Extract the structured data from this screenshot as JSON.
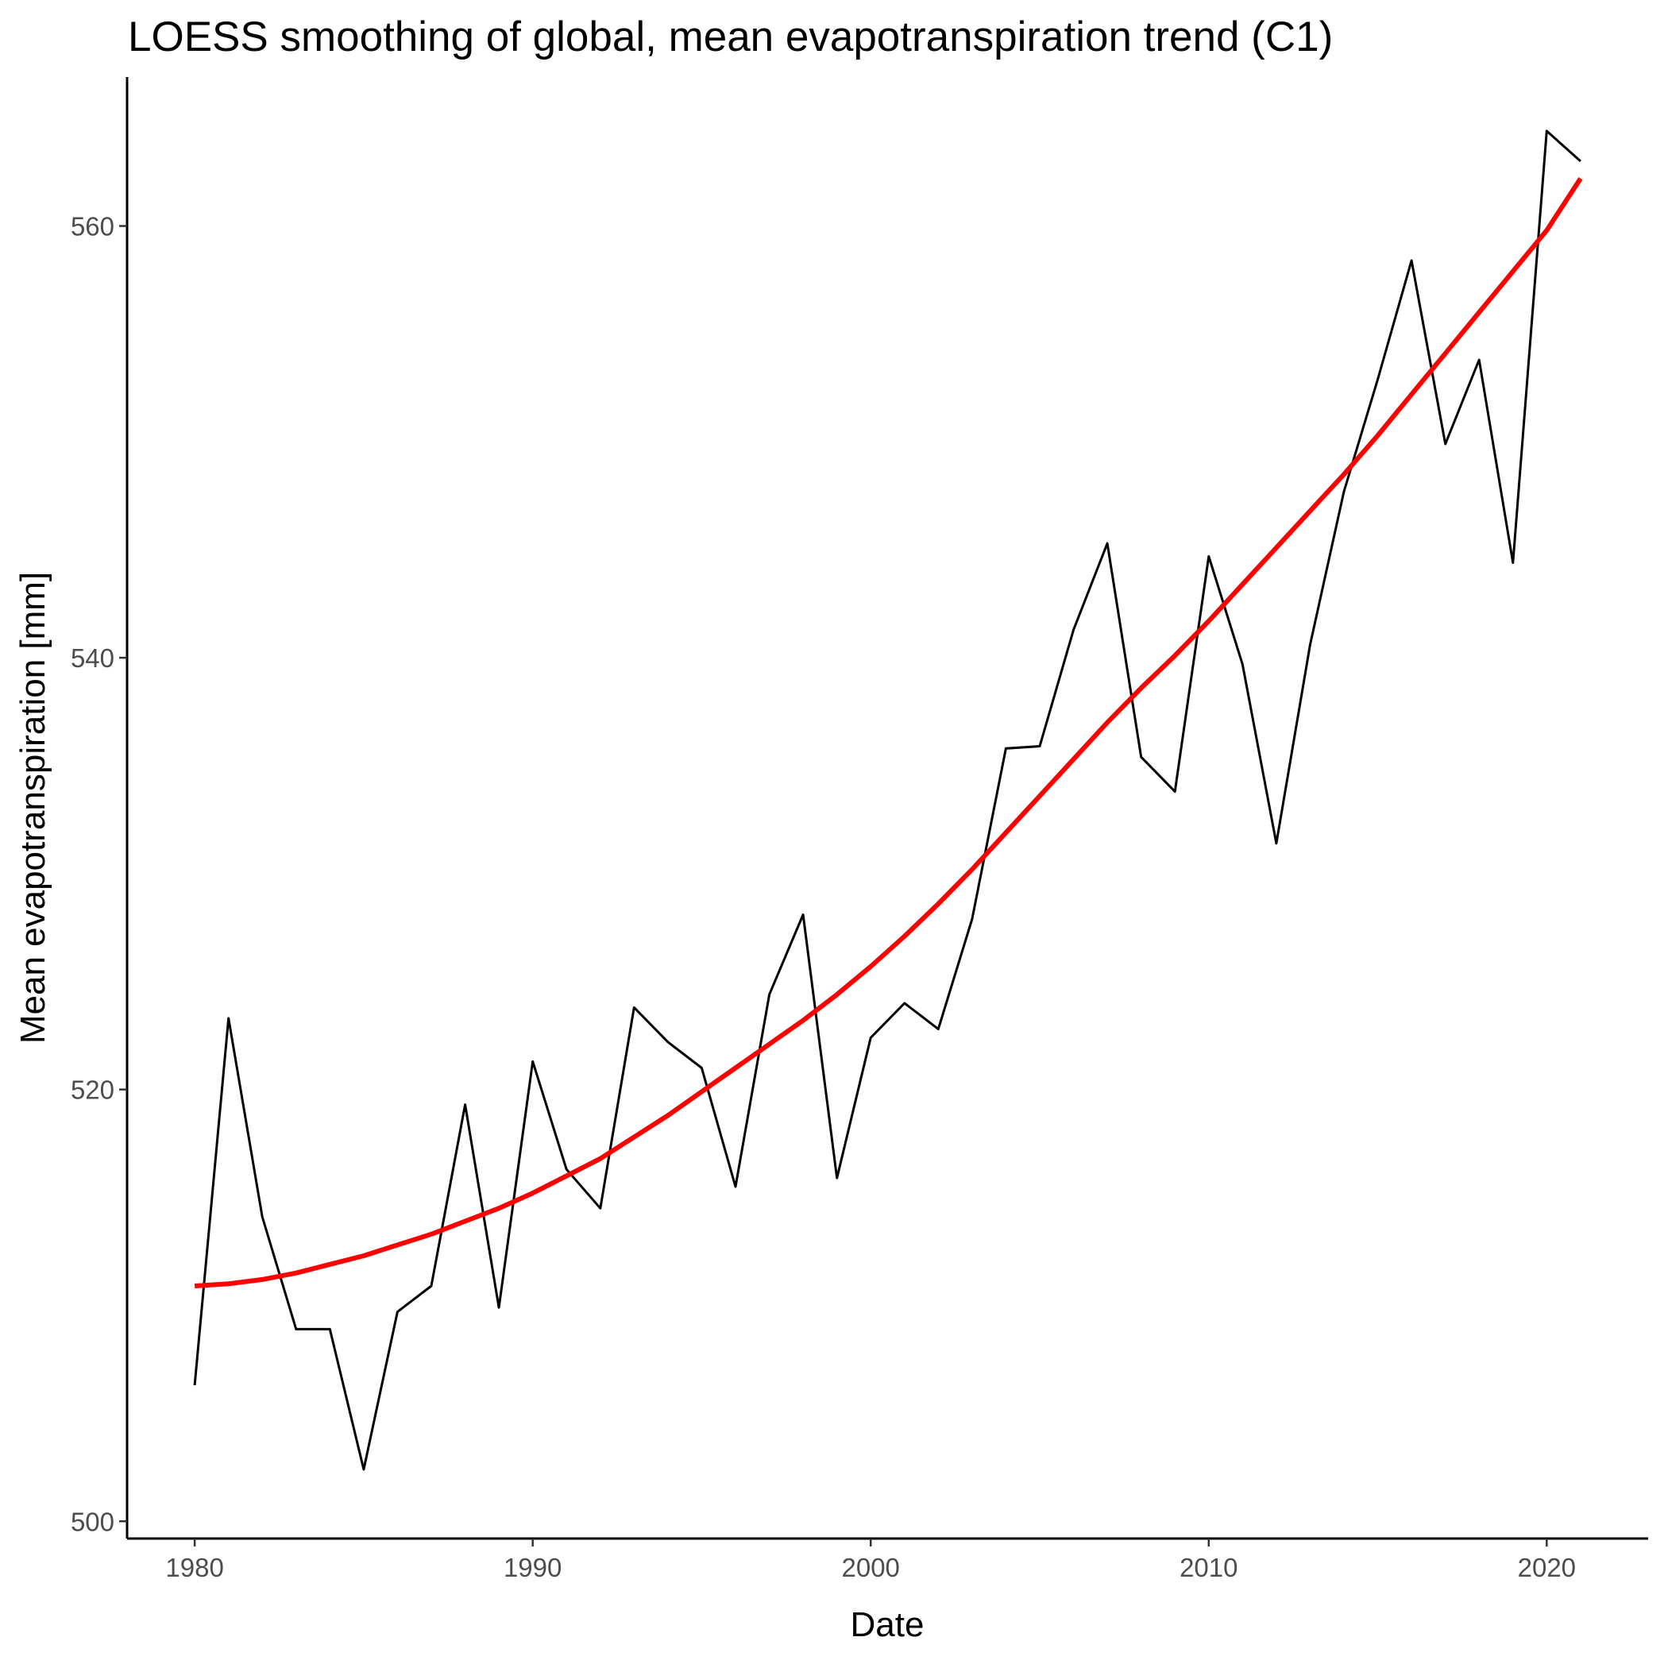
{
  "chart_data": {
    "type": "line",
    "title": "LOESS smoothing of global, mean evapotranspiration trend (C1)",
    "xlabel": "Date",
    "ylabel": "Mean evapotranspiration [mm]",
    "xlim": [
      1978,
      2023
    ],
    "ylim": [
      499.2,
      566.9
    ],
    "x_ticks": [
      1980,
      1990,
      2000,
      2010,
      2020
    ],
    "y_ticks": [
      500,
      520,
      540,
      560
    ],
    "grid": false,
    "legend": "none",
    "x": [
      1980,
      1981,
      1982,
      1983,
      1984,
      1985,
      1986,
      1987,
      1988,
      1989,
      1990,
      1991,
      1992,
      1993,
      1994,
      1995,
      1996,
      1997,
      1998,
      1999,
      2000,
      2001,
      2002,
      2003,
      2004,
      2005,
      2006,
      2007,
      2008,
      2009,
      2010,
      2011,
      2012,
      2013,
      2014,
      2015,
      2016,
      2017,
      2018,
      2019,
      2020,
      2021
    ],
    "series": [
      {
        "color": "#000000",
        "values": [
          506.3,
          523.3,
          514.1,
          508.9,
          508.9,
          502.4,
          509.7,
          510.9,
          519.3,
          509.9,
          521.3,
          516.3,
          514.5,
          523.8,
          522.2,
          521.0,
          515.5,
          524.4,
          528.1,
          515.9,
          522.4,
          524.0,
          522.8,
          527.9,
          535.8,
          535.9,
          541.3,
          545.3,
          535.4,
          533.8,
          544.7,
          539.7,
          531.4,
          540.6,
          547.7,
          552.9,
          558.4,
          549.9,
          553.8,
          544.4,
          564.4,
          563.0
        ]
      },
      {
        "color": "#ff0000",
        "values": [
          510.9,
          511.0,
          511.2,
          511.5,
          511.9,
          512.3,
          512.8,
          513.3,
          513.9,
          514.5,
          515.2,
          516.0,
          516.8,
          517.8,
          518.8,
          519.9,
          521.0,
          522.1,
          523.2,
          524.4,
          525.7,
          527.1,
          528.6,
          530.2,
          531.9,
          533.6,
          535.3,
          537.0,
          538.6,
          540.1,
          541.7,
          543.4,
          545.1,
          546.8,
          548.5,
          550.3,
          552.2,
          554.1,
          556.0,
          557.9,
          559.8,
          562.2
        ]
      }
    ]
  }
}
